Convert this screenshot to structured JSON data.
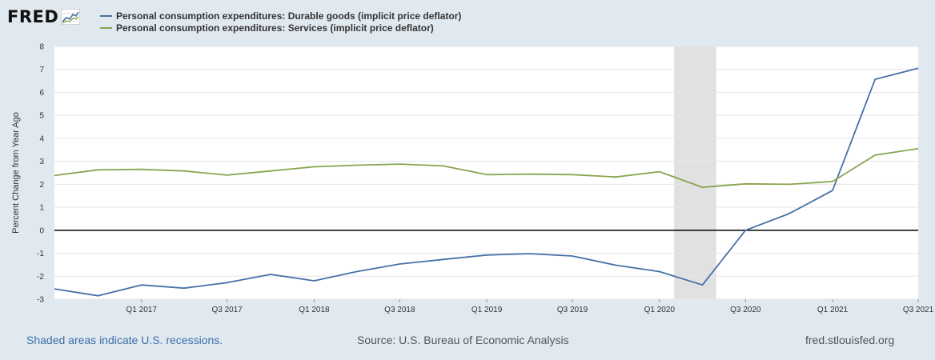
{
  "header": {
    "logo_text": "FRED",
    "logo_icon": "line-graph-icon"
  },
  "chart_data": {
    "type": "line",
    "ylabel": "Percent Change from Year Ago",
    "ylim": [
      -3,
      8
    ],
    "yticks": [
      8,
      7,
      6,
      5,
      4,
      3,
      2,
      1,
      0,
      -1,
      -2,
      -3
    ],
    "grid": true,
    "legend_placement": "top-left",
    "x": [
      "2016-07-01",
      "2016-10-01",
      "2017-01-01",
      "2017-04-01",
      "2017-07-01",
      "2017-10-01",
      "2018-01-01",
      "2018-04-01",
      "2018-07-01",
      "2018-10-01",
      "2019-01-01",
      "2019-04-01",
      "2019-07-01",
      "2019-10-01",
      "2020-01-01",
      "2020-04-01",
      "2020-07-01",
      "2020-10-01",
      "2021-01-01",
      "2021-04-01",
      "2021-07-01"
    ],
    "xticks": [
      {
        "label": "Q1 2017",
        "date": "2017-01-01"
      },
      {
        "label": "Q3 2017",
        "date": "2017-07-01"
      },
      {
        "label": "Q1 2018",
        "date": "2018-01-01"
      },
      {
        "label": "Q3 2018",
        "date": "2018-07-01"
      },
      {
        "label": "Q1 2019",
        "date": "2019-01-01"
      },
      {
        "label": "Q3 2019",
        "date": "2019-07-01"
      },
      {
        "label": "Q1 2020",
        "date": "2020-01-01"
      },
      {
        "label": "Q3 2020",
        "date": "2020-07-01"
      },
      {
        "label": "Q1 2021",
        "date": "2021-01-01"
      },
      {
        "label": "Q3 2021",
        "date": "2021-07-01"
      }
    ],
    "recession": {
      "start": "2020-02-01",
      "end": "2020-04-30"
    },
    "series": [
      {
        "name": "Personal consumption expenditures: Durable goods (implicit price deflator)",
        "color": "#4572a7",
        "values": [
          -2.55,
          -2.85,
          -2.38,
          -2.52,
          -2.28,
          -1.92,
          -2.2,
          -1.8,
          -1.47,
          -1.27,
          -1.08,
          -1.02,
          -1.12,
          -1.52,
          -1.8,
          -2.38,
          0.0,
          0.72,
          1.73,
          6.57,
          7.05
        ]
      },
      {
        "name": "Personal consumption expenditures: Services (implicit price deflator)",
        "color": "#89a54e",
        "values": [
          2.38,
          2.63,
          2.65,
          2.58,
          2.4,
          2.58,
          2.76,
          2.83,
          2.88,
          2.8,
          2.42,
          2.44,
          2.42,
          2.32,
          2.55,
          1.87,
          2.02,
          2.0,
          2.12,
          3.27,
          3.55
        ]
      }
    ]
  },
  "footer": {
    "recession_note": "Shaded areas indicate U.S. recessions.",
    "source": "Source: U.S. Bureau of Economic Analysis",
    "site": "fred.stlouisfed.org"
  }
}
